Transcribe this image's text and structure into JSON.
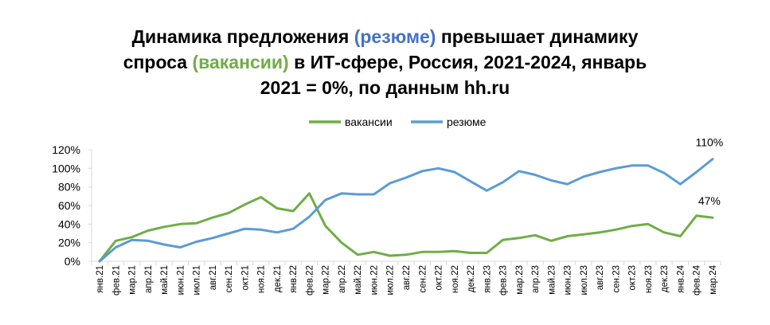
{
  "title_parts": [
    {
      "text": "Динамика предложения ",
      "hl": ""
    },
    {
      "text": "(резюме)",
      "hl": "blue"
    },
    {
      "text": " превышает динамику",
      "hl": "",
      "br": true
    },
    {
      "text": "спроса ",
      "hl": ""
    },
    {
      "text": "(вакансии)",
      "hl": "green"
    },
    {
      "text": " в ИТ-сфере, Россия, 2021-2024, январь",
      "hl": "",
      "br": true
    },
    {
      "text": "2021 = 0%, по данным hh.ru",
      "hl": ""
    }
  ],
  "chart_data": {
    "type": "line",
    "title": "Динамика предложения (резюме) превышает динамику спроса (вакансии) в ИТ-сфере, Россия, 2021-2024, январь 2021 = 0%, по данным hh.ru",
    "xlabel": "",
    "ylabel": "",
    "ylim": [
      0,
      120
    ],
    "yticks": [
      "0%",
      "20%",
      "40%",
      "60%",
      "80%",
      "100%",
      "120%"
    ],
    "grid": false,
    "legend_position": "top",
    "categories": [
      "янв.21",
      "фев.21",
      "мар.21",
      "апр.21",
      "май.21",
      "июн.21",
      "июл.21",
      "авг.21",
      "сен.21",
      "окт.21",
      "ноя.21",
      "дек.21",
      "янв.22",
      "фев.22",
      "мар.22",
      "апр.22",
      "май.22",
      "июн.22",
      "июл.22",
      "авг.22",
      "сен.22",
      "окт.22",
      "ноя.22",
      "дек.22",
      "янв.23",
      "фев.23",
      "мар.23",
      "апр.23",
      "май.23",
      "июн.23",
      "июл.23",
      "авг.23",
      "сен.23",
      "окт.23",
      "ноя.23",
      "дек.23",
      "янв.24",
      "фев.24",
      "мар.24"
    ],
    "series": [
      {
        "name": "вакансии",
        "color": "#70ad47",
        "values": [
          0,
          22,
          26,
          33,
          37,
          40,
          41,
          47,
          52,
          61,
          69,
          57,
          54,
          73,
          38,
          20,
          7,
          10,
          6,
          7,
          10,
          10,
          11,
          9,
          9,
          23,
          25,
          28,
          22,
          27,
          29,
          31,
          34,
          38,
          40,
          31,
          27,
          49,
          47
        ],
        "end_label": "47%"
      },
      {
        "name": "резюме",
        "color": "#5b9bd5",
        "values": [
          0,
          15,
          23,
          22,
          18,
          15,
          21,
          25,
          30,
          35,
          34,
          31,
          35,
          48,
          66,
          73,
          72,
          72,
          84,
          90,
          97,
          100,
          96,
          86,
          76,
          85,
          97,
          93,
          87,
          83,
          91,
          96,
          100,
          103,
          103,
          95,
          83,
          96,
          110
        ],
        "end_label": "110%"
      }
    ]
  }
}
